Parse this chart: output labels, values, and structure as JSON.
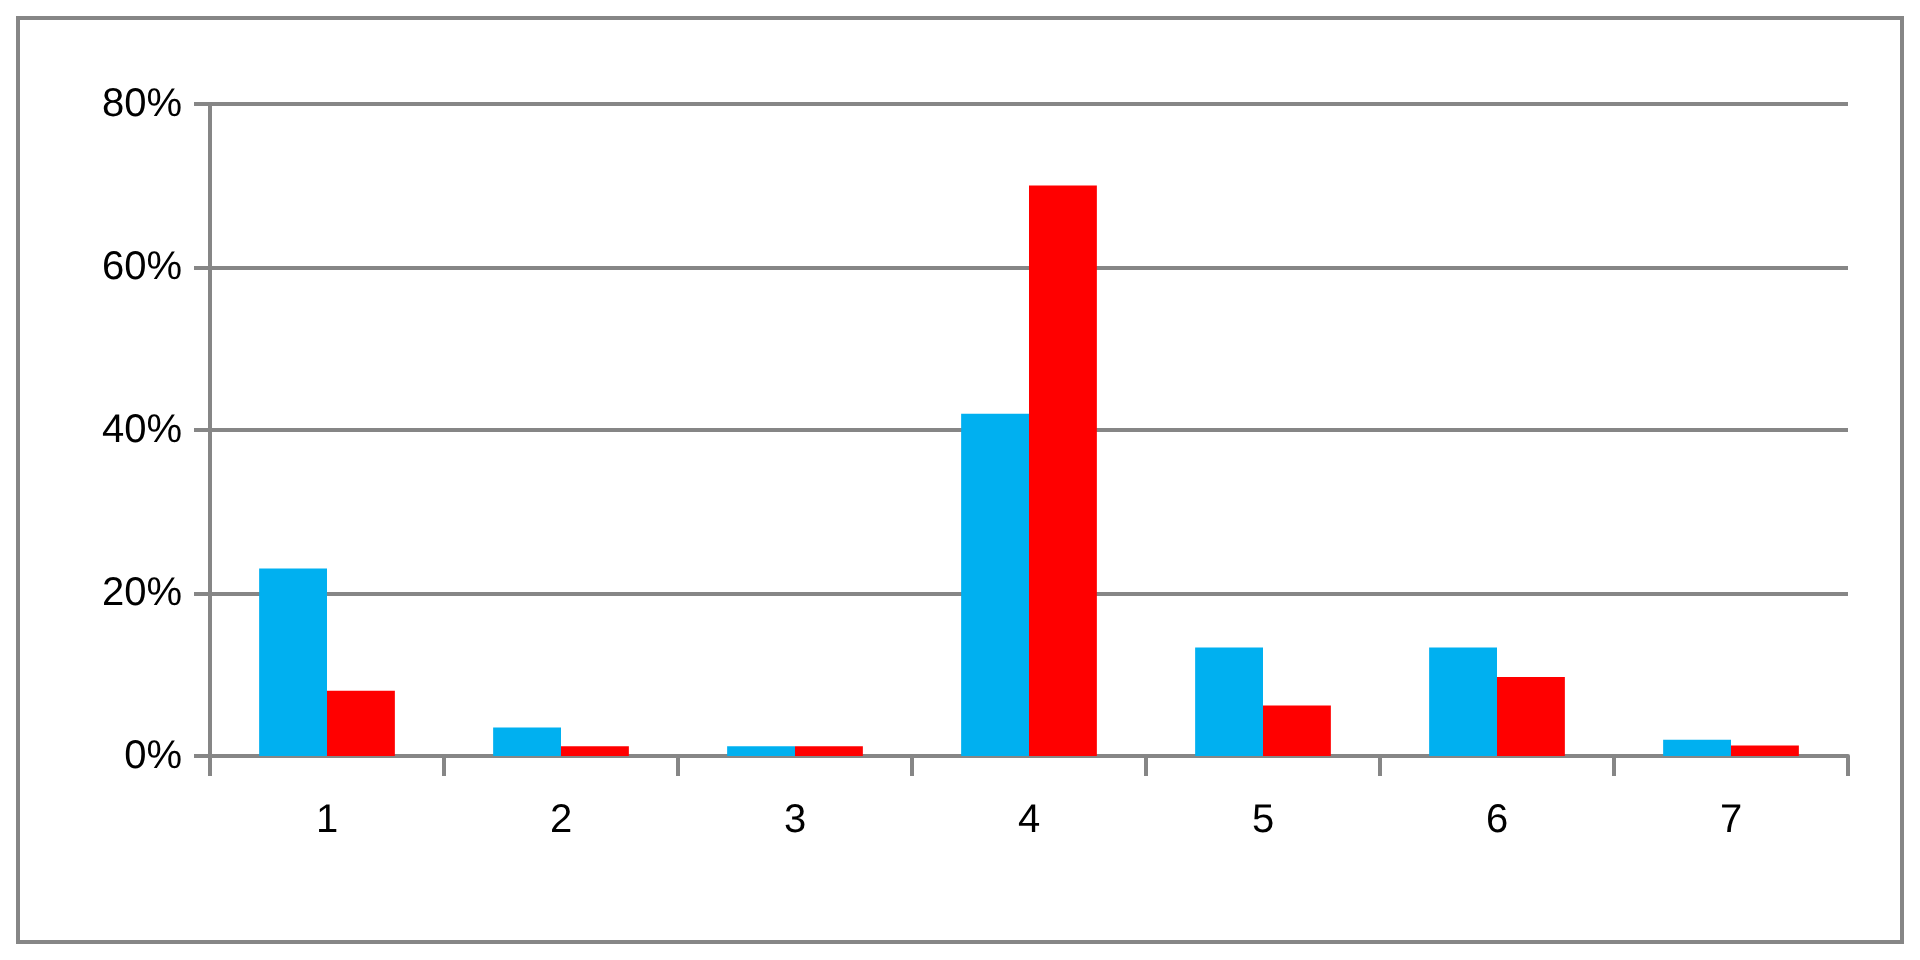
{
  "chart_data": {
    "type": "bar",
    "categories": [
      "1",
      "2",
      "3",
      "4",
      "5",
      "6",
      "7"
    ],
    "series": [
      {
        "color": "#00b0f0",
        "values": [
          23,
          3.5,
          1.2,
          42,
          13.3,
          13.3,
          2
        ]
      },
      {
        "color": "#ff0000",
        "values": [
          8,
          1.2,
          1.2,
          70,
          6.2,
          9.7,
          1.3
        ]
      }
    ],
    "ylim": [
      0,
      80
    ],
    "yticks": [
      {
        "value": 0,
        "label": "0%"
      },
      {
        "value": 20,
        "label": "20%"
      },
      {
        "value": 40,
        "label": "40%"
      },
      {
        "value": 60,
        "label": "60%"
      },
      {
        "value": 80,
        "label": "80%"
      }
    ],
    "grid": "y"
  }
}
